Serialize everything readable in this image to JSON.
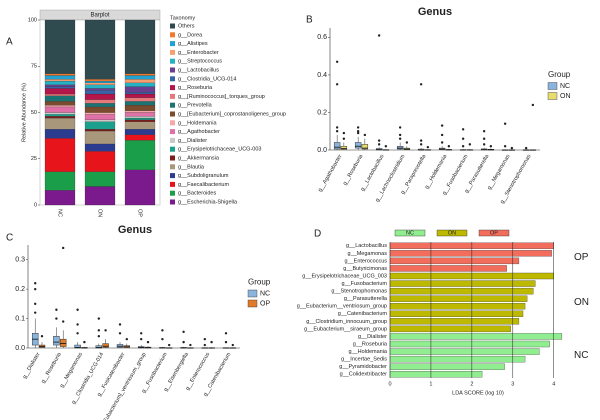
{
  "chart_data": [
    {
      "label": "A",
      "type": "stacked_bar",
      "title": "Barplot",
      "ylabel": "Relative Abundance (%)",
      "legend_title": "Taxonomy",
      "categories": [
        "NC",
        "ON",
        "OP"
      ],
      "ylim": [
        0,
        100
      ],
      "yticks": [
        0,
        25,
        50,
        75,
        100
      ],
      "series": [
        {
          "name": "Others",
          "color": "#2f4b4f",
          "values": [
            29,
            32,
            29
          ]
        },
        {
          "name": "g__Dorea",
          "color": "#f07a2e",
          "values": [
            1,
            1,
            1
          ]
        },
        {
          "name": "g__Alistipes",
          "color": "#1fa3d4",
          "values": [
            2,
            1,
            2
          ]
        },
        {
          "name": "g__Enterobacter",
          "color": "#f7a072",
          "values": [
            1,
            1,
            2
          ]
        },
        {
          "name": "g__Streptococcus",
          "color": "#27b1c4",
          "values": [
            2,
            2,
            2
          ]
        },
        {
          "name": "g__Lactobacillus",
          "color": "#6b3f8f",
          "values": [
            1,
            1,
            3
          ]
        },
        {
          "name": "g__Clostridia_UCG-014",
          "color": "#3a64a8",
          "values": [
            1,
            2,
            1
          ]
        },
        {
          "name": "g__Roseburia",
          "color": "#b4154a",
          "values": [
            3,
            3,
            2
          ]
        },
        {
          "name": "g__[Ruminococcus]_torques_group",
          "color": "#e67a7a",
          "values": [
            1,
            2,
            2
          ]
        },
        {
          "name": "g__Prevotella",
          "color": "#1c7373",
          "values": [
            3,
            2,
            2
          ]
        },
        {
          "name": "g__[Eubacterium]_coprostanoligenes_group",
          "color": "#7a4b2c",
          "values": [
            2,
            3,
            3
          ]
        },
        {
          "name": "g__Holdemania",
          "color": "#f4a8a8",
          "values": [
            1,
            1,
            1
          ]
        },
        {
          "name": "g__Agathobacter",
          "color": "#e070a8",
          "values": [
            3,
            3,
            2
          ]
        },
        {
          "name": "g__Dialister",
          "color": "#c9c9c9",
          "values": [
            1,
            1,
            1
          ]
        },
        {
          "name": "g__Erysipelotrichaceae_UCG-003",
          "color": "#1aa08c",
          "values": [
            1,
            4,
            1
          ]
        },
        {
          "name": "g__Akkermansia",
          "color": "#7c1d1d",
          "values": [
            1,
            1,
            1
          ]
        },
        {
          "name": "g__Blautia",
          "color": "#a9977c",
          "values": [
            6,
            7,
            4
          ]
        },
        {
          "name": "g__Subdoligranulum",
          "color": "#2b3b8f",
          "values": [
            5,
            4,
            3
          ]
        },
        {
          "name": "g__Faecalibacterium",
          "color": "#e8141c",
          "values": [
            18,
            11,
            3
          ]
        },
        {
          "name": "g__Bacteroides",
          "color": "#1a9e4a",
          "values": [
            10,
            8,
            16
          ]
        },
        {
          "name": "g__Escherichia-Shigella",
          "color": "#7b1a8c",
          "values": [
            8,
            10,
            19
          ]
        }
      ]
    },
    {
      "label": "B",
      "type": "box",
      "title": "Genus",
      "legend_title": "Group",
      "categories": [
        "g__Agathobacter",
        "g__Roseburia",
        "g__Lactobacillus",
        "g__Lachnoclostridium",
        "g__Paraprevotella",
        "g__Holdemania",
        "g__Fusobacterium",
        "g__Parasutterella",
        "g__Megamonas",
        "g__Stenotrophomonas"
      ],
      "ylim": [
        0,
        0.65
      ],
      "yticks": [
        {
          "value": 0,
          "label": "0.0"
        },
        0.2,
        0.4,
        0.6
      ],
      "series": [
        {
          "name": "NC",
          "color": "#8ab4dc",
          "values": [
            [
              0,
              0.005,
              0.015,
              0.04,
              0.08
            ],
            [
              0,
              0.01,
              0.02,
              0.04,
              0.07
            ],
            [
              0,
              0,
              0.002,
              0.008,
              0.015
            ],
            [
              0,
              0.005,
              0.01,
              0.02,
              0.04
            ],
            [
              0,
              0,
              0,
              0.005,
              0.01
            ],
            [
              0,
              0.002,
              0.005,
              0.01,
              0.02
            ],
            [
              0,
              0,
              0,
              0.002,
              0.005
            ],
            [
              0,
              0,
              0.002,
              0.006,
              0.012
            ],
            [
              0,
              0,
              0,
              0.001,
              0.002
            ],
            [
              0,
              0,
              0,
              0.001,
              0.002
            ]
          ],
          "outliers": [
            [
              0.1,
              0.12,
              0.35,
              0.47
            ],
            [
              0.09,
              0.1,
              0.12
            ],
            [
              0.03,
              0.05,
              0.61
            ],
            [
              0.06,
              0.08,
              0.12
            ],
            [
              0.03,
              0.05,
              0.35
            ],
            [
              0.04,
              0.08,
              0.13
            ],
            [
              0.02,
              0.06,
              0.11
            ],
            [
              0.03,
              0.06,
              0.1
            ],
            [
              0.02,
              0.14
            ],
            [
              0.01
            ]
          ]
        },
        {
          "name": "ON",
          "color": "#e8dc6e",
          "values": [
            [
              0,
              0.003,
              0.008,
              0.02,
              0.04
            ],
            [
              0,
              0.005,
              0.01,
              0.03,
              0.06
            ],
            [
              0,
              0,
              0,
              0.002,
              0.004
            ],
            [
              0,
              0.002,
              0.005,
              0.01,
              0.02
            ],
            [
              0,
              0,
              0,
              0.002,
              0.004
            ],
            [
              0,
              0,
              0.001,
              0.003,
              0.006
            ],
            [
              0,
              0,
              0,
              0.002,
              0.005
            ],
            [
              0,
              0,
              0.001,
              0.004,
              0.008
            ],
            [
              0,
              0,
              0,
              0.001,
              0.002
            ],
            [
              0,
              0,
              0,
              0.001,
              0.002
            ]
          ],
          "outliers": [
            [
              0.06,
              0.09
            ],
            [
              0.08
            ],
            [
              0.02
            ],
            [
              0.04
            ],
            [
              0.015
            ],
            [
              0.02
            ],
            [
              0.03
            ],
            [
              0.02
            ],
            [
              0.01
            ],
            [
              0.24
            ]
          ]
        }
      ]
    },
    {
      "label": "C",
      "type": "box",
      "title": "Genus",
      "legend_title": "Group",
      "categories": [
        "g__Dialister",
        "g__Roseburia",
        "g__Megamonas",
        "g__Clostridia_UCG-014",
        "g__Fusicatenibacter",
        "g__[Eubacterium]_ventriosum_group",
        "g__Fusobacterium",
        "g__Eisenbergiella",
        "g__Enterococcus",
        "g__Catenibacterium"
      ],
      "ylim": [
        0,
        0.35
      ],
      "yticks": [
        {
          "value": 0,
          "label": "0.0"
        },
        0.1,
        0.2,
        0.3
      ],
      "series": [
        {
          "name": "NC",
          "color": "#8ab4dc",
          "values": [
            [
              0,
              0.01,
              0.03,
              0.05,
              0.1
            ],
            [
              0,
              0.01,
              0.02,
              0.04,
              0.07
            ],
            [
              0,
              0,
              0.002,
              0.01,
              0.02
            ],
            [
              0,
              0,
              0.002,
              0.008,
              0.015
            ],
            [
              0,
              0.002,
              0.006,
              0.012,
              0.02
            ],
            [
              0,
              0,
              0.002,
              0.005,
              0.01
            ],
            [
              0,
              0,
              0,
              0.002,
              0.004
            ],
            [
              0,
              0,
              0,
              0.002,
              0.004
            ],
            [
              0,
              0,
              0,
              0.001,
              0.002
            ],
            [
              0,
              0,
              0,
              0.001,
              0.002
            ]
          ],
          "outliers": [
            [
              0.12,
              0.15,
              0.2,
              0.22
            ],
            [
              0.1,
              0.13
            ],
            [
              0.05,
              0.08,
              0.13
            ],
            [
              0.04,
              0.06,
              0.1
            ],
            [
              0.05,
              0.08
            ],
            [
              0.03,
              0.05
            ],
            [
              0.03,
              0.06
            ],
            [
              0.02,
              0.055
            ],
            [
              0.01,
              0.03
            ],
            [
              0.02,
              0.05
            ]
          ]
        },
        {
          "name": "OP",
          "color": "#e07b2a",
          "values": [
            [
              0,
              0.002,
              0.005,
              0.01,
              0.02
            ],
            [
              0,
              0.005,
              0.015,
              0.03,
              0.06
            ],
            [
              0,
              0,
              0,
              0.002,
              0.004
            ],
            [
              0,
              0.002,
              0.006,
              0.015,
              0.03
            ],
            [
              0,
              0.002,
              0.004,
              0.008,
              0.015
            ],
            [
              0,
              0,
              0.001,
              0.003,
              0.006
            ],
            [
              0,
              0,
              0,
              0.001,
              0.002
            ],
            [
              0,
              0,
              0,
              0.001,
              0.002
            ],
            [
              0,
              0,
              0,
              0.001,
              0.003
            ],
            [
              0,
              0,
              0,
              0.001,
              0.002
            ]
          ],
          "outliers": [
            [
              0.04
            ],
            [
              0.09,
              0.34
            ],
            [
              0.02
            ],
            [
              0.06
            ],
            [
              0.03
            ],
            [
              0.02
            ],
            [
              0.01
            ],
            [
              0.01
            ],
            [
              0.02
            ],
            [
              0.01
            ]
          ]
        }
      ]
    },
    {
      "label": "D",
      "type": "lda",
      "xlabel": "LDA SCORE (log 10)",
      "xlim": [
        0,
        4.3
      ],
      "xticks": [
        0,
        1,
        2,
        3,
        4
      ],
      "grid": true,
      "legend": [
        "NC",
        "ON",
        "OP"
      ],
      "series": [
        {
          "name": "OP",
          "color": "#f26d5b",
          "categories": [
            "g__Lactobacillus",
            "g__Megamonas",
            "g__Enterococcus",
            "g__Butyricimonas"
          ],
          "values": [
            4.0,
            3.95,
            3.15,
            2.85
          ]
        },
        {
          "name": "ON",
          "color": "#bdb800",
          "categories": [
            "g__Erysipelotrichaceae_UCG_003",
            "g__Fusobacterium",
            "g__Stenotrophomonas",
            "g__Parasutterella",
            "g__Eubacterium__ventriosum_group",
            "g__Catenibacterium",
            "g__Clostridium_innocuum_group",
            "g__Eubacterium__siraeum_group"
          ],
          "values": [
            4.0,
            3.55,
            3.5,
            3.35,
            3.3,
            3.25,
            3.15,
            2.95
          ]
        },
        {
          "name": "NC",
          "color": "#90ee90",
          "categories": [
            "g__Dialister",
            "g__Roseburia",
            "g__Holdemania",
            "g__Incertae_Sedis",
            "g__Pyramidobacter",
            "g__Colidextribacter"
          ],
          "values": [
            4.2,
            3.9,
            3.65,
            3.3,
            2.8,
            2.25
          ]
        }
      ]
    }
  ]
}
